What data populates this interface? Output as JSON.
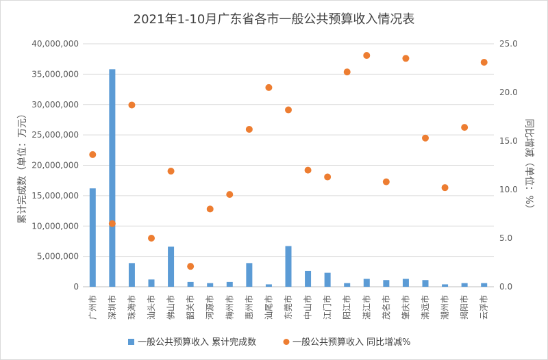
{
  "chart_data": {
    "type": "bar+scatter",
    "title": "2021年1-10月广东省各市一般公共预算收入情况表",
    "ylabel_left": "累计完成数（单位：万元）",
    "ylabel_right": "同比增减（单位：%）",
    "ylim_left": [
      0,
      40000000
    ],
    "ylim_right": [
      0,
      25
    ],
    "left_ticks": [
      "0",
      "5,000,000",
      "10,000,000",
      "15,000,000",
      "20,000,000",
      "25,000,000",
      "30,000,000",
      "35,000,000",
      "40,000,000"
    ],
    "right_ticks": [
      "0.0",
      "5.0",
      "10.0",
      "15.0",
      "20.0",
      "25.0"
    ],
    "categories": [
      "广州市",
      "深圳市",
      "珠海市",
      "汕头市",
      "佛山市",
      "韶关市",
      "河源市",
      "梅州市",
      "惠州市",
      "汕尾市",
      "东莞市",
      "中山市",
      "江门市",
      "阳江市",
      "湛江市",
      "茂名市",
      "肇庆市",
      "清远市",
      "潮州市",
      "揭阳市",
      "云浮市"
    ],
    "series": [
      {
        "name": "一般公共预算收入 累计完成数",
        "type": "bar",
        "axis": "left",
        "color": "#5B9BD5",
        "values": [
          16200000,
          35800000,
          3900000,
          1200000,
          6600000,
          800000,
          600000,
          800000,
          3900000,
          400000,
          6700000,
          2600000,
          2300000,
          600000,
          1300000,
          1100000,
          1300000,
          1100000,
          400000,
          600000,
          600000
        ]
      },
      {
        "name": "一般公共预算收入 同比增减%",
        "type": "scatter",
        "axis": "right",
        "color": "#ED7D31",
        "values": [
          13.6,
          6.5,
          18.7,
          5.0,
          11.9,
          2.1,
          8.0,
          9.5,
          16.2,
          20.5,
          18.2,
          12.0,
          11.3,
          22.1,
          23.8,
          10.8,
          23.5,
          15.3,
          10.2,
          16.4,
          23.1
        ]
      }
    ],
    "grid": true,
    "legend_position": "bottom"
  }
}
